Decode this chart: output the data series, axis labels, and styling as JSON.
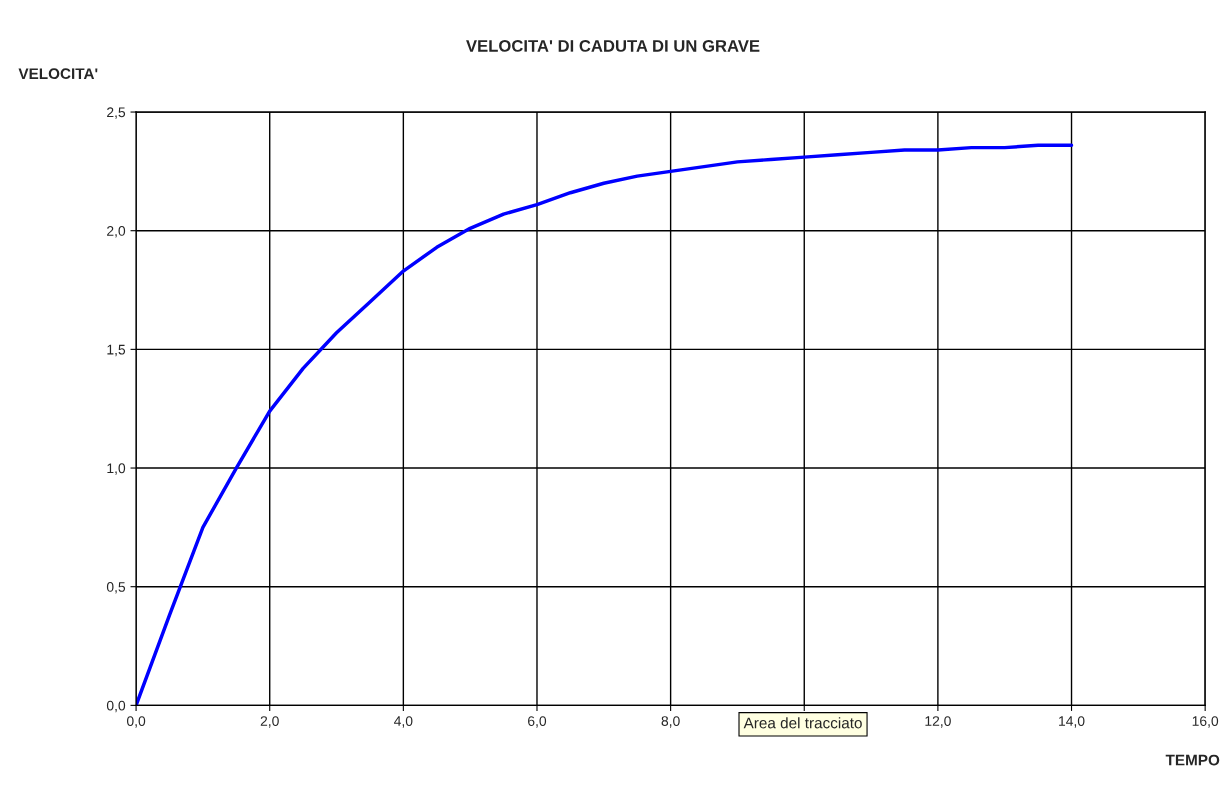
{
  "chart_data": {
    "type": "line",
    "title": "VELOCITA' DI CADUTA DI UN GRAVE",
    "xlabel": "TEMPO",
    "ylabel": "VELOCITA'",
    "annotations": [
      "Area del tracciato"
    ],
    "x": [
      0,
      0.5,
      1,
      1.5,
      2,
      2.5,
      3,
      3.5,
      4,
      4.5,
      5,
      5.5,
      6,
      6.5,
      7,
      7.5,
      8,
      8.5,
      9,
      9.5,
      10,
      10.5,
      11,
      11.5,
      12,
      12.5,
      13,
      13.5,
      14
    ],
    "series": [
      {
        "color": "#0000ff",
        "values": [
          0,
          0.38,
          0.75,
          1.0,
          1.24,
          1.42,
          1.57,
          1.7,
          1.83,
          1.93,
          2.01,
          2.07,
          2.11,
          2.16,
          2.2,
          2.23,
          2.25,
          2.27,
          2.29,
          2.3,
          2.31,
          2.32,
          2.33,
          2.34,
          2.34,
          2.35,
          2.35,
          2.36,
          2.36
        ]
      }
    ],
    "xlim": [
      0,
      16
    ],
    "ylim": [
      0,
      2.5
    ],
    "xticks": [
      {
        "value": 0,
        "label": "0,0"
      },
      {
        "value": 2,
        "label": "2,0"
      },
      {
        "value": 4,
        "label": "4,0"
      },
      {
        "value": 6,
        "label": "6,0"
      },
      {
        "value": 8,
        "label": "8,0"
      },
      {
        "value": 10,
        "label": null
      },
      {
        "value": 12,
        "label": "12,0"
      },
      {
        "value": 14,
        "label": "14,0"
      },
      {
        "value": 16,
        "label": "16,0"
      }
    ],
    "yticks": [
      {
        "value": 0,
        "label": "0,0"
      },
      {
        "value": 0.5,
        "label": "0,5"
      },
      {
        "value": 1,
        "label": "1,0"
      },
      {
        "value": 1.5,
        "label": "1,5"
      },
      {
        "value": 2,
        "label": "2,0"
      },
      {
        "value": 2.5,
        "label": "2,5"
      }
    ],
    "grid": true,
    "line_style": "solid",
    "marker": "none"
  }
}
